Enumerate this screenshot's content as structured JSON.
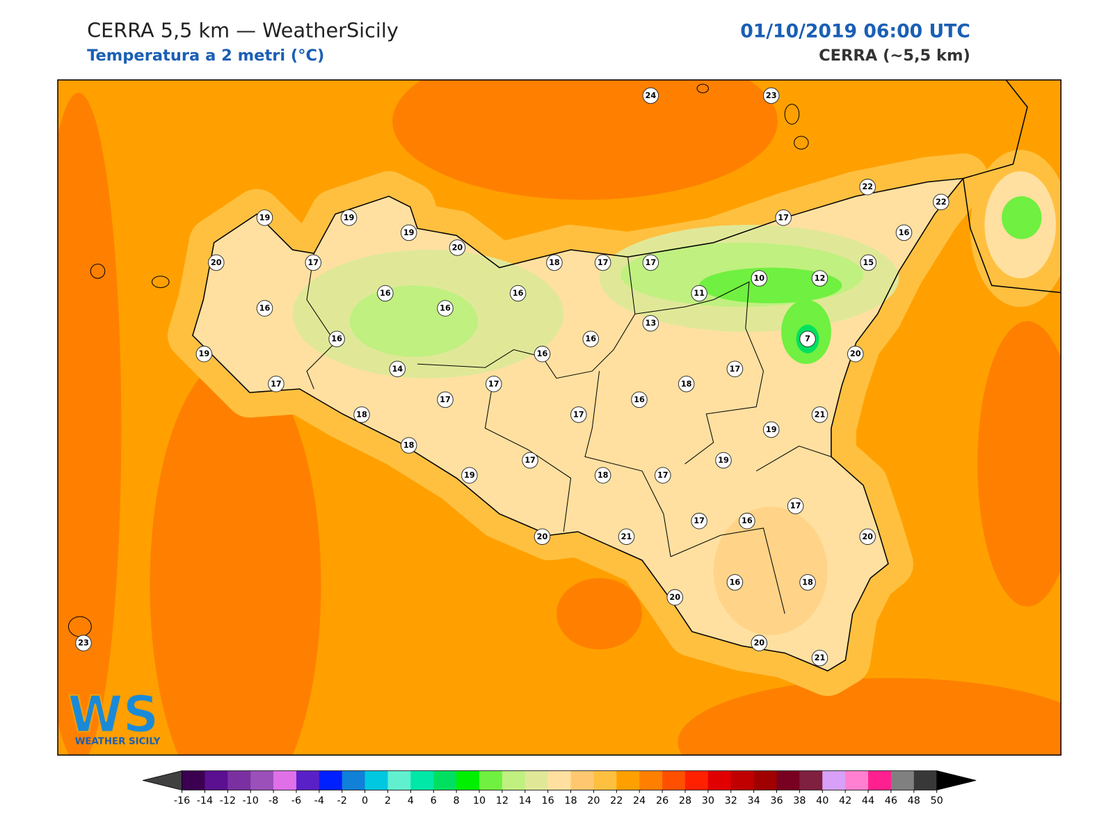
{
  "header": {
    "title": "CERRA 5,5 km — WeatherSicily",
    "subtitle": "Temperatura a 2 metri (°C)",
    "date": "01/10/2019 06:00 UTC",
    "model": "CERRA (~5,5 km)"
  },
  "stations": [
    24,
    23,
    22,
    22,
    17,
    16,
    19,
    19,
    19,
    20,
    20,
    17,
    18,
    17,
    17,
    15,
    10,
    12,
    16,
    16,
    11,
    16,
    16,
    13,
    16,
    16,
    7,
    19,
    16,
    20,
    14,
    17,
    17,
    17,
    18,
    17,
    16,
    17,
    18,
    21,
    19,
    18,
    19,
    17,
    19,
    18,
    17,
    17,
    17,
    16,
    20,
    21,
    20,
    16,
    18,
    20,
    23,
    20,
    21
  ],
  "colorbar": {
    "ticks": [
      -16,
      -14,
      -12,
      -10,
      -8,
      -6,
      -4,
      -2,
      0,
      2,
      4,
      6,
      8,
      10,
      12,
      14,
      16,
      18,
      20,
      22,
      24,
      26,
      28,
      30,
      32,
      34,
      36,
      38,
      40,
      42,
      44,
      46,
      48,
      50
    ],
    "colors": [
      "#3b0050",
      "#5a1090",
      "#7a30a0",
      "#9a50b8",
      "#e070e8",
      "#5a20c8",
      "#0020ff",
      "#1080d8",
      "#00c8e0",
      "#60f0d0",
      "#00e8a8",
      "#00e060",
      "#00f000",
      "#70f040",
      "#c0f080",
      "#e0e898",
      "#ffe0a0",
      "#ffc870",
      "#ffc040",
      "#ffa000",
      "#ff8000",
      "#ff5000",
      "#ff2000",
      "#e00000",
      "#c00000",
      "#a00000",
      "#780020",
      "#802040",
      "#d8a0f8",
      "#ff80d0",
      "#ff2090",
      "#808080",
      "#383838"
    ],
    "under": "#404040",
    "over": "#000000"
  },
  "logo": {
    "mark": "WS",
    "name": "WEATHER SICILY"
  }
}
